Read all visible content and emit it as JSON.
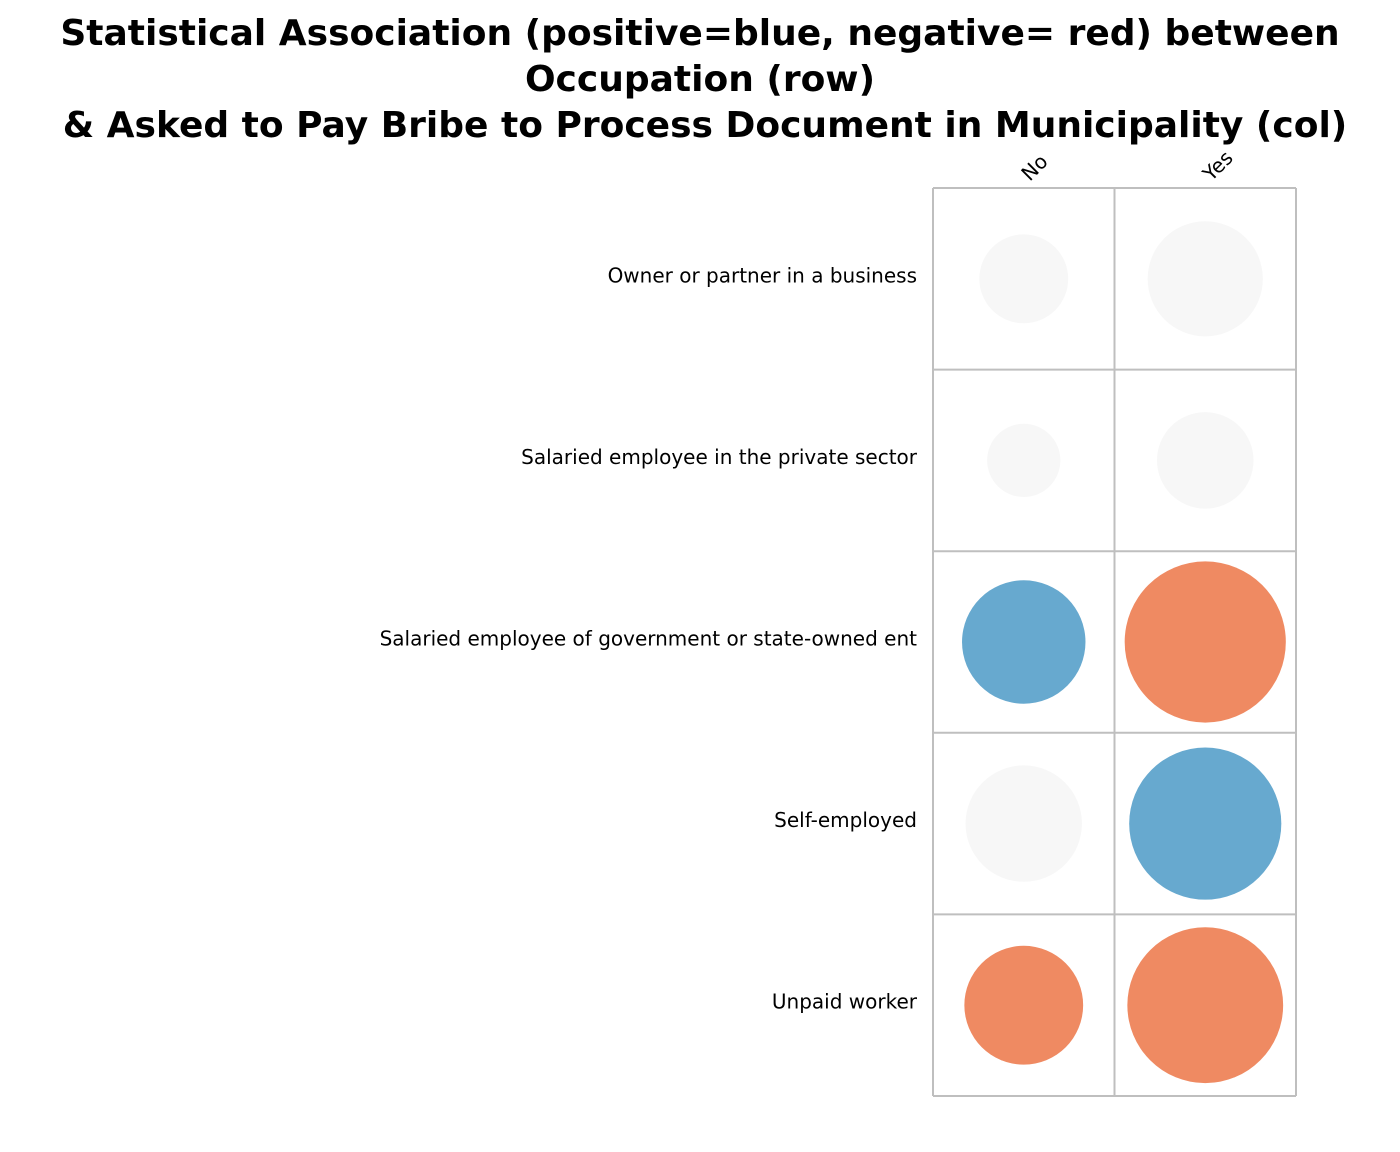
{
  "chart_data": {
    "type": "heatmap",
    "title_lines": [
      "Statistical Association (positive=blue, negative= red) between",
      "Occupation (row)",
      "& Asked to Pay Bribe to Process Document in Municipality (col)"
    ],
    "rows": [
      "Owner or partner in a business",
      "Salaried employee in the private sector",
      "Salaried employee of government or state-owned ent",
      "Self-employed",
      "Unpaid worker"
    ],
    "columns": [
      "No",
      "Yes"
    ],
    "values": [
      [
        -0.28,
        -0.47
      ],
      [
        -0.19,
        -0.33
      ],
      [
        0.54,
        -0.92
      ],
      [
        -0.48,
        0.82
      ],
      [
        -0.5,
        -0.86
      ]
    ],
    "value_range": [
      -1,
      1
    ],
    "colors": {
      "positive": "#67a9cf",
      "negative": "#ef8a62",
      "neutral": "#f7f7f7",
      "grid": "#bfbfbf"
    },
    "legend": "none"
  }
}
